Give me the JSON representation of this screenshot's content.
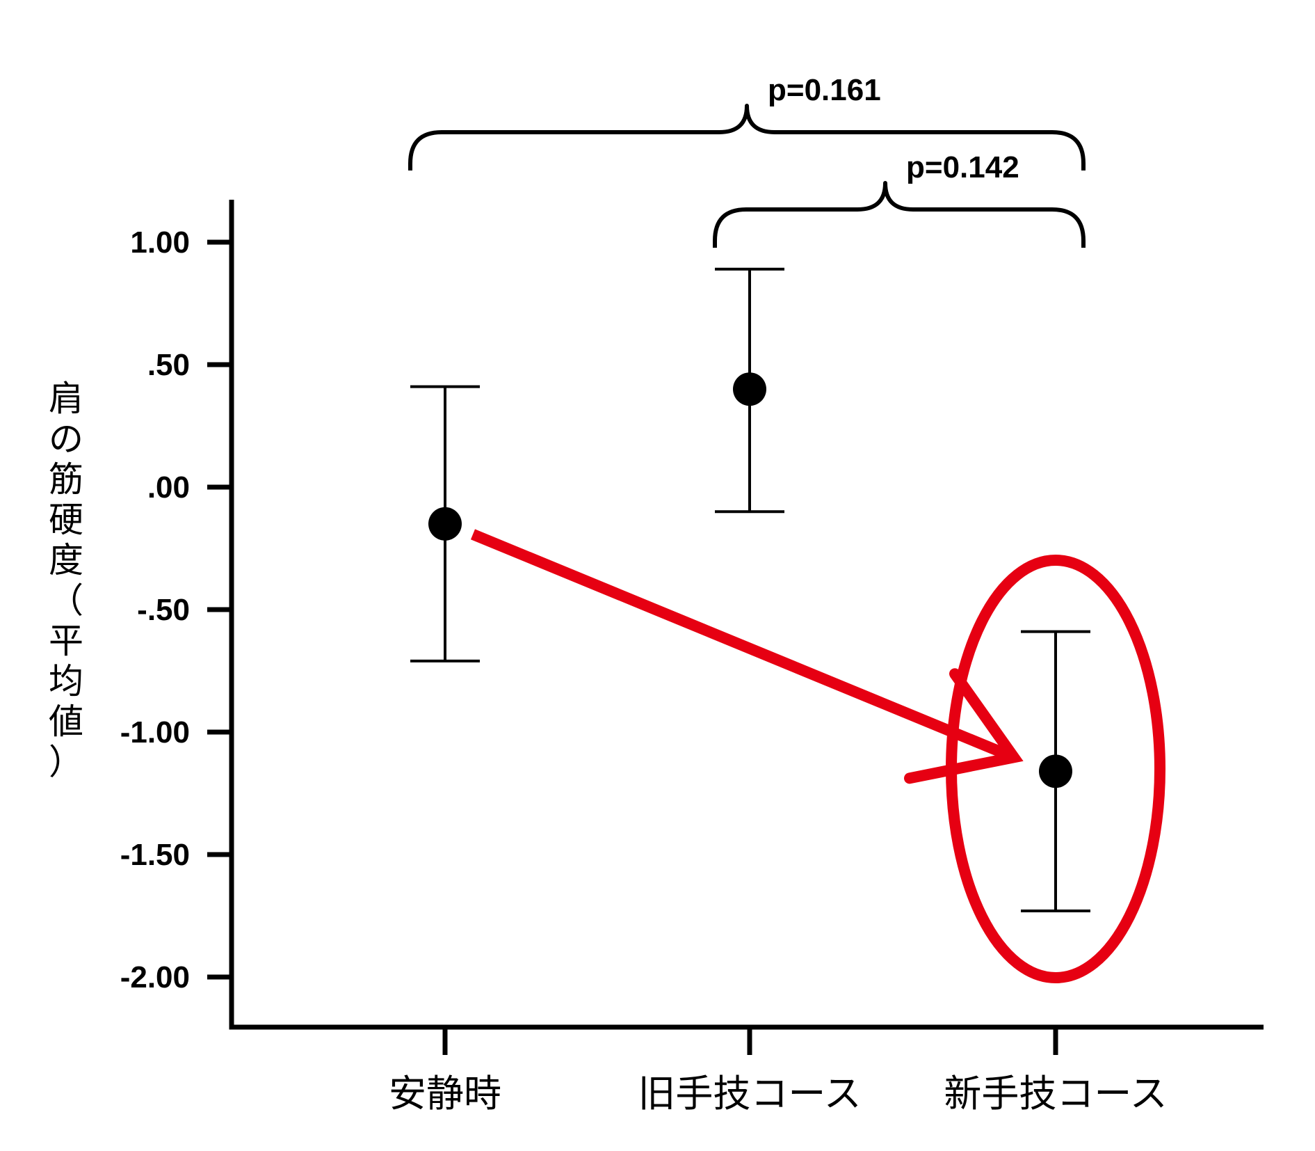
{
  "chart_data": {
    "type": "errorbar",
    "title": "",
    "xlabel": "",
    "ylabel": "肩の筋硬度（平均値）",
    "ylim": [
      -2.2,
      1.2
    ],
    "yticks": [
      1.0,
      0.5,
      0.0,
      -0.5,
      -1.0,
      -1.5,
      -2.0
    ],
    "ytick_labels": [
      "1.00",
      ".50",
      ".00",
      "-.50",
      "-1.00",
      "-1.50",
      "-2.00"
    ],
    "categories": [
      "安静時",
      "旧手技コース",
      "新手技コース"
    ],
    "series": [
      {
        "means": [
          -0.15,
          0.4,
          -1.16
        ],
        "upper": [
          0.41,
          0.89,
          -0.59
        ],
        "lower": [
          -0.71,
          -0.1,
          -1.73
        ]
      }
    ],
    "annotations": [
      {
        "from": 0,
        "to": 2,
        "label": "p=0.161",
        "level": 1
      },
      {
        "from": 1,
        "to": 2,
        "label": "p=0.142",
        "level": 2
      }
    ],
    "highlight": {
      "color": "#e60012",
      "arrow_from_category": 0,
      "arrow_to_category": 2,
      "circled_category": 2
    },
    "grid": false,
    "legend": "none"
  }
}
